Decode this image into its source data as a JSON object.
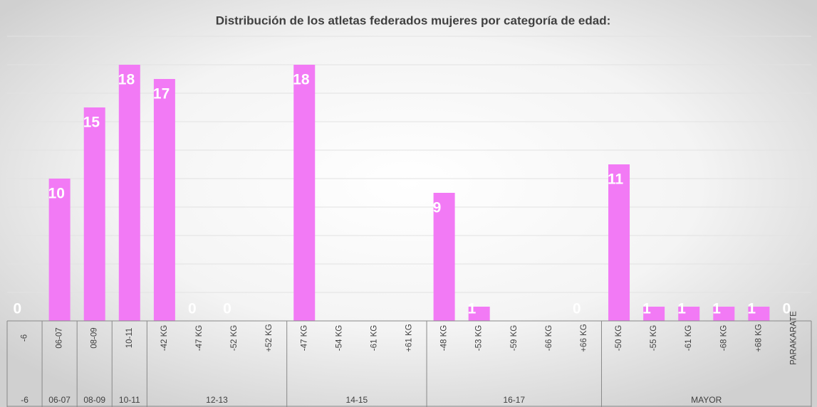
{
  "chart_data": {
    "type": "bar",
    "title": "Distribución de los atletas federados mujeres por categoría de edad:",
    "groups": [
      {
        "label": "-6",
        "categories": [
          "-6"
        ]
      },
      {
        "label": "06-07",
        "categories": [
          "06-07"
        ]
      },
      {
        "label": "08-09",
        "categories": [
          "08-09"
        ]
      },
      {
        "label": "10-11",
        "categories": [
          "10-11"
        ]
      },
      {
        "label": "12-13",
        "categories": [
          "-42 KG",
          "-47 KG",
          "-52 KG",
          "+52 KG"
        ]
      },
      {
        "label": "14-15",
        "categories": [
          "-47 KG",
          "-54 KG",
          "-61 KG",
          "+61 KG"
        ]
      },
      {
        "label": "16-17",
        "categories": [
          "-48 KG",
          "-53 KG",
          "-59 KG",
          "-66 KG",
          "+66 KG"
        ]
      },
      {
        "label": "MAYOR",
        "categories": [
          "-50 KG",
          "-55 KG",
          "-61 KG",
          "-68 KG",
          "+68 KG",
          "PARAKARATE"
        ]
      }
    ],
    "values": [
      0,
      10,
      15,
      18,
      17,
      0,
      0,
      null,
      18,
      null,
      null,
      null,
      9,
      1,
      null,
      null,
      0,
      11,
      1,
      1,
      1,
      1,
      0
    ],
    "color": "#f27af5",
    "ylim": [
      0,
      20
    ],
    "yticks": [
      0,
      2,
      4,
      6,
      8,
      10,
      12,
      14,
      16,
      18,
      20
    ],
    "grid": true
  }
}
